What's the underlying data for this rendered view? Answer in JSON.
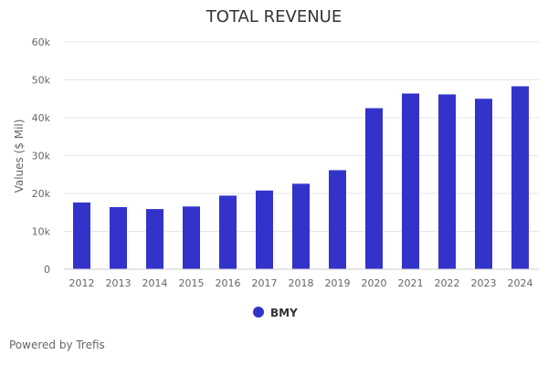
{
  "chart_data": {
    "type": "bar",
    "title": "TOTAL REVENUE",
    "xlabel": "",
    "ylabel": "Values ($ Mil)",
    "categories": [
      "2012",
      "2013",
      "2014",
      "2015",
      "2016",
      "2017",
      "2018",
      "2019",
      "2020",
      "2021",
      "2022",
      "2023",
      "2024"
    ],
    "series": [
      {
        "name": "BMY",
        "color": "#3333cc",
        "values": [
          17621,
          16385,
          15879,
          16560,
          19427,
          20776,
          22561,
          26145,
          42518,
          46385,
          46159,
          45006,
          48300
        ]
      }
    ],
    "ylim": [
      0,
      60000
    ],
    "yticks": [
      0,
      10000,
      20000,
      30000,
      40000,
      50000,
      60000
    ],
    "ytick_labels": [
      "0",
      "10k",
      "20k",
      "30k",
      "40k",
      "50k",
      "60k"
    ],
    "grid": true,
    "legend_position": "bottom-center"
  },
  "footer": {
    "credit": "Powered by Trefis"
  },
  "colors": {
    "bar": "#3333cc",
    "grid": "#e6e6e6",
    "axis": "#cccccc"
  }
}
